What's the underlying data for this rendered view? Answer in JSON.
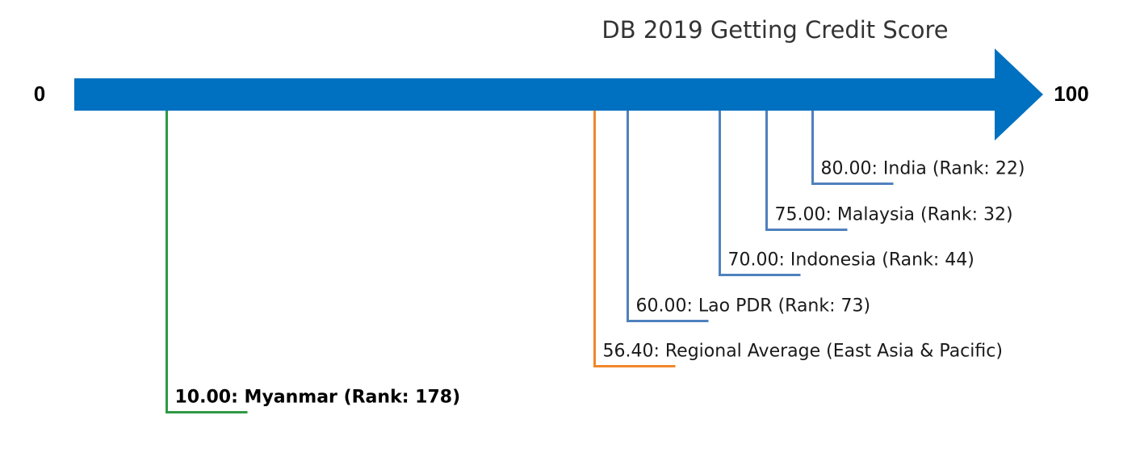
{
  "chart_data": {
    "type": "scatter",
    "title": "DB 2019 Getting Credit Score",
    "xlim": [
      0,
      100
    ],
    "axis_start_label": "0",
    "axis_end_label": "100",
    "axis_color": "#0070c0",
    "points": [
      {
        "value": 80.0,
        "label": "80.00: India (Rank: 22)",
        "color": "#4f81bd",
        "bold": false
      },
      {
        "value": 75.0,
        "label": "75.00: Malaysia (Rank: 32)",
        "color": "#4f81bd",
        "bold": false
      },
      {
        "value": 70.0,
        "label": "70.00: Indonesia (Rank: 44)",
        "color": "#4f81bd",
        "bold": false
      },
      {
        "value": 60.0,
        "label": "60.00: Lao PDR (Rank: 73)",
        "color": "#4f81bd",
        "bold": false
      },
      {
        "value": 56.4,
        "label": "56.40: Regional Average (East Asia & Pacific)",
        "color": "#f0882a",
        "bold": false
      },
      {
        "value": 10.0,
        "label": "10.00: Myanmar (Rank: 178)",
        "color": "#2e9a44",
        "bold": true
      }
    ]
  }
}
